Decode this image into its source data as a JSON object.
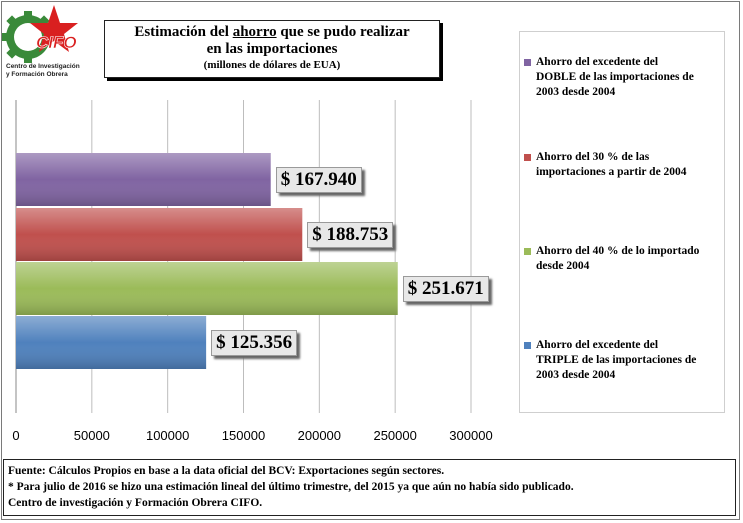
{
  "logo": {
    "text": "CIFO",
    "subtitle_line1": "Centro de Investigación",
    "subtitle_line2": "y Formación Obrera"
  },
  "chart_data": {
    "type": "bar",
    "orientation": "horizontal",
    "title": "Estimación del ahorro que se pudo realizar en las importaciones",
    "title_parts": {
      "pre": "Estimación del ",
      "underlined": "ahorro",
      "post": " que se pudo realizar",
      "line2": "en las importaciones"
    },
    "subtitle": "(millones de dólares de EUA)",
    "xlim": [
      0,
      300000
    ],
    "ticks": [
      0,
      50000,
      100000,
      150000,
      200000,
      250000,
      300000
    ],
    "tick_labels": [
      "0",
      "50000",
      "100000",
      "150000",
      "200000",
      "250000",
      "300000"
    ],
    "grid": true,
    "legend_position": "right",
    "series": [
      {
        "name": "Ahorro del excedente del DOBLE de las importaciones de 2003 desde 2004",
        "value": 167940,
        "label": "$ 167.940",
        "color": "#8064a2"
      },
      {
        "name": "Ahorro del 30 % de las importaciones a partir de 2004",
        "value": 188753,
        "label": "$ 188.753",
        "color": "#c0504d"
      },
      {
        "name": "Ahorro del 40 % de lo importado desde 2004",
        "value": 251671,
        "label": "$ 251.671",
        "color": "#9bbb59"
      },
      {
        "name": "Ahorro del excedente del TRIPLE de las importaciones de 2003 desde 2004",
        "value": 125356,
        "label": "$ 125.356",
        "color": "#4f81bd"
      }
    ]
  },
  "legend_lines": [
    [
      "Ahorro del excedente del",
      "DOBLE de las importaciones de",
      "2003 desde 2004"
    ],
    [
      "Ahorro del  30 % de las",
      "importaciones a partir de 2004"
    ],
    [
      "Ahorro del 40 % de lo importado",
      "desde 2004"
    ],
    [
      "Ahorro del excedente del",
      "TRIPLE de las importaciones de",
      "2003 desde 2004"
    ]
  ],
  "source": {
    "line1": "Fuente: Cálculos Propios en base a la data oficial del BCV: Exportaciones según sectores.",
    "line2": "* Para julio de 2016 se hizo una estimación lineal del último trimestre, del 2015 ya que aún no había sido publicado.",
    "line3": "Centro de investigación y Formación Obrera CIFO."
  }
}
